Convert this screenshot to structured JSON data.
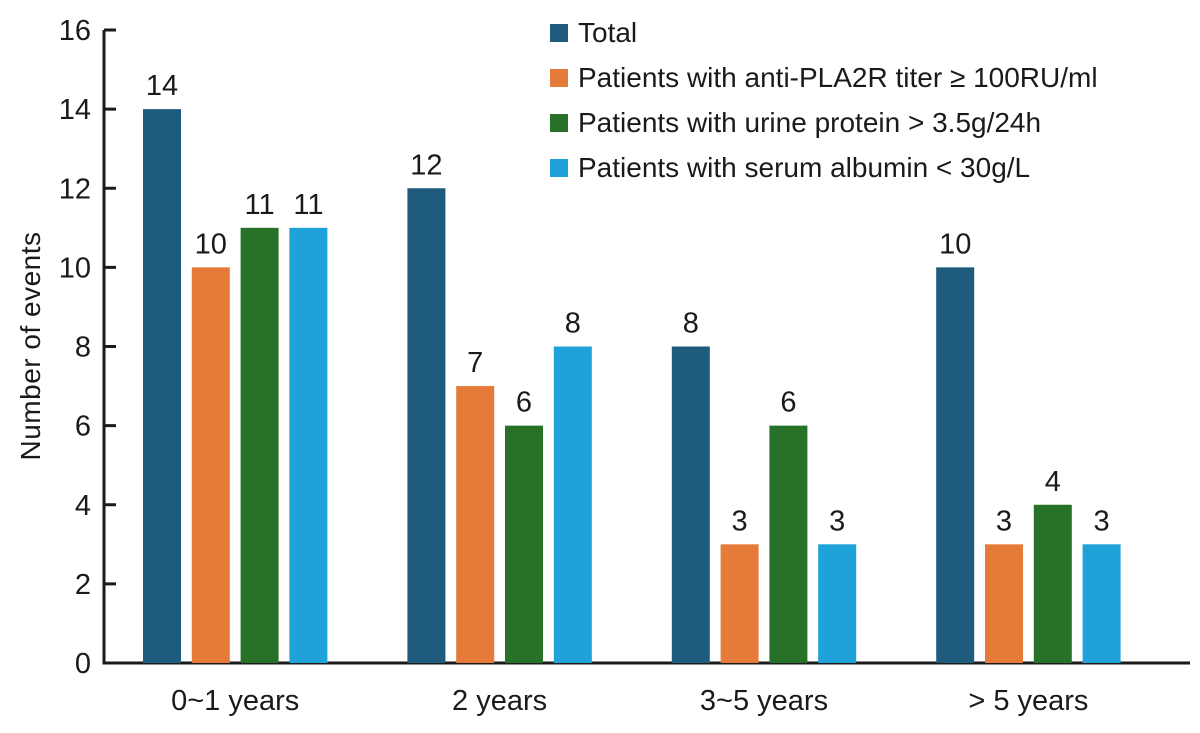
{
  "chart_data": {
    "type": "bar",
    "categories": [
      "0~1 years",
      "2 years",
      "3~5 years",
      "> 5 years"
    ],
    "series": [
      {
        "name": "Total",
        "color": "#1f5b7c",
        "values": [
          14,
          12,
          8,
          10
        ]
      },
      {
        "name": "Patients with anti-PLA2R titer ≥ 100RU/ml",
        "color": "#e57a39",
        "values": [
          10,
          7,
          3,
          3
        ]
      },
      {
        "name": "Patients with urine protein > 3.5g/24h",
        "color": "#287129",
        "values": [
          11,
          6,
          6,
          4
        ]
      },
      {
        "name": "Patients with serum albumin < 30g/L",
        "color": "#1ea2d9",
        "values": [
          11,
          8,
          3,
          3
        ]
      }
    ],
    "title": "",
    "xlabel": "",
    "ylabel": "Number of events",
    "ylim": [
      0,
      16
    ],
    "yticks": [
      0,
      2,
      4,
      6,
      8,
      10,
      12,
      14,
      16
    ],
    "bar_value_labels": true,
    "legend_position": "top-right",
    "grid": false,
    "axis_color": "#1a1a1a",
    "text_color": "#1a1a1a"
  }
}
